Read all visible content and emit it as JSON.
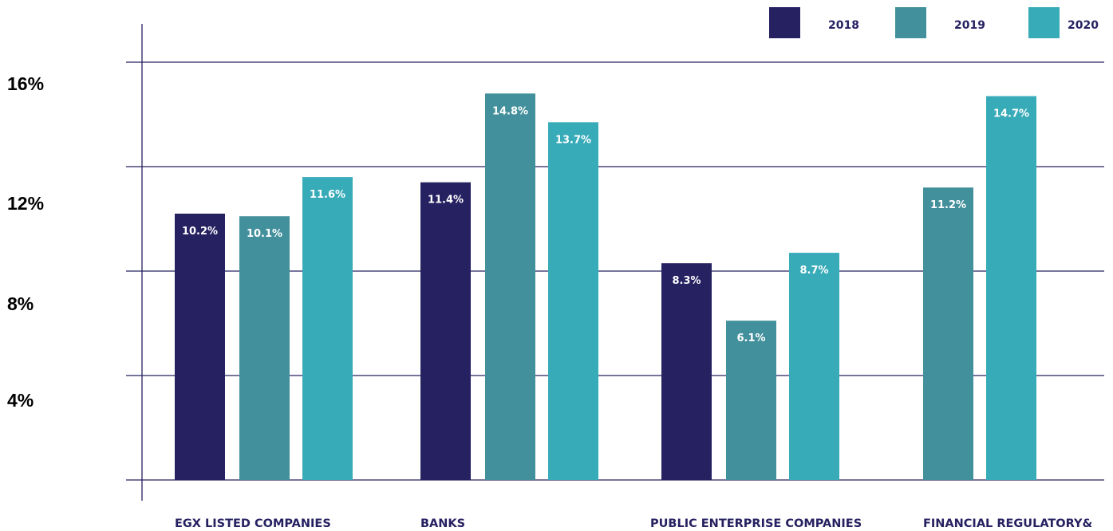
{
  "chart_data": {
    "type": "bar",
    "categories": [
      "EGX LISTED COMPANIES",
      "BANKS",
      "PUBLIC ENTERPRISE COMPANIES",
      "FINANCIAL REGULATORY&"
    ],
    "series": [
      {
        "name": "2018",
        "color": "#262161",
        "values": [
          10.2,
          11.4,
          8.3,
          null
        ],
        "labels": [
          "10.2%",
          "11.4%",
          "8.3%",
          ""
        ]
      },
      {
        "name": "2019",
        "color": "#42909b",
        "values": [
          10.1,
          14.8,
          6.1,
          11.2
        ],
        "labels": [
          "10.1%",
          "14.8%",
          "6.1%",
          "11.2%"
        ]
      },
      {
        "name": "2020",
        "color": "#38abb9",
        "values": [
          11.6,
          13.7,
          8.7,
          14.7
        ],
        "labels": [
          "11.6%",
          "13.7%",
          "8.7%",
          "14.7%"
        ]
      }
    ],
    "yticks": [
      {
        "value": 16,
        "label": "16%"
      },
      {
        "value": 12,
        "label": "12%"
      },
      {
        "value": 8,
        "label": "8%"
      },
      {
        "value": 4,
        "label": "4%"
      }
    ],
    "ylim": [
      0,
      16
    ],
    "legend_position": "top-right",
    "grid": true,
    "grid_color": "#262161"
  }
}
